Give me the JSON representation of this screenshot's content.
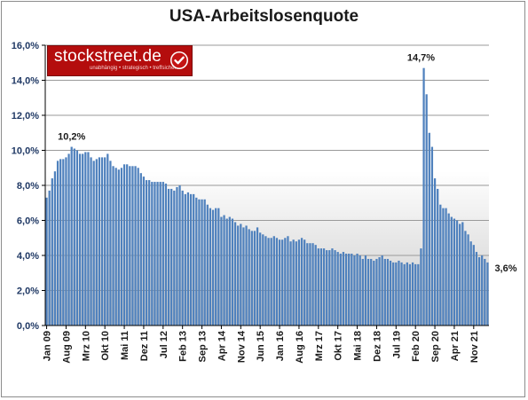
{
  "chart_data": {
    "type": "bar",
    "title": "USA-Arbeitslosenquote",
    "xlabel": "",
    "ylabel": "",
    "ylim": [
      0,
      16
    ],
    "y_tick_labels": [
      "0,0%",
      "2,0%",
      "4,0%",
      "6,0%",
      "8,0%",
      "10,0%",
      "12,0%",
      "14,0%",
      "16,0%"
    ],
    "y_tick_values": [
      0,
      2,
      4,
      6,
      8,
      10,
      12,
      14,
      16
    ],
    "x_tick_labels": [
      {
        "label": "Jan 09",
        "index": 0
      },
      {
        "label": "Aug 09",
        "index": 7
      },
      {
        "label": "Mrz 10",
        "index": 14
      },
      {
        "label": "Okt 10",
        "index": 21
      },
      {
        "label": "Mai 11",
        "index": 28
      },
      {
        "label": "Dez 11",
        "index": 35
      },
      {
        "label": "Jul 12",
        "index": 42
      },
      {
        "label": "Feb 13",
        "index": 49
      },
      {
        "label": "Sep 13",
        "index": 56
      },
      {
        "label": "Apr 14",
        "index": 63
      },
      {
        "label": "Nov 14",
        "index": 70
      },
      {
        "label": "Jun 15",
        "index": 77
      },
      {
        "label": "Jan 16",
        "index": 84
      },
      {
        "label": "Aug 16",
        "index": 91
      },
      {
        "label": "Mrz 17",
        "index": 98
      },
      {
        "label": "Okt 17",
        "index": 105
      },
      {
        "label": "Mai 18",
        "index": 112
      },
      {
        "label": "Dez 18",
        "index": 119
      },
      {
        "label": "Jul 19",
        "index": 126
      },
      {
        "label": "Feb 20",
        "index": 133
      },
      {
        "label": "Sep 20",
        "index": 140
      },
      {
        "label": "Apr 21",
        "index": 147
      },
      {
        "label": "Nov 21",
        "index": 154
      }
    ],
    "annotations": [
      {
        "text": "10,2%",
        "index": 9,
        "value": 10.2
      },
      {
        "text": "14,7%",
        "index": 135,
        "value": 14.7
      },
      {
        "text": "3,6%",
        "index": 159,
        "value": 3.6
      }
    ],
    "series": [
      {
        "color": "#4f81bd",
        "values": [
          7.3,
          7.7,
          8.4,
          8.8,
          9.4,
          9.5,
          9.5,
          9.6,
          9.8,
          10.2,
          10.1,
          10.0,
          9.8,
          9.8,
          9.9,
          9.9,
          9.6,
          9.4,
          9.5,
          9.6,
          9.6,
          9.6,
          9.8,
          9.4,
          9.1,
          9.0,
          8.9,
          9.0,
          9.2,
          9.2,
          9.1,
          9.1,
          9.1,
          9.0,
          8.7,
          8.5,
          8.3,
          8.3,
          8.2,
          8.2,
          8.2,
          8.2,
          8.2,
          8.1,
          7.8,
          7.8,
          7.7,
          7.9,
          8.0,
          7.7,
          7.5,
          7.6,
          7.5,
          7.5,
          7.3,
          7.2,
          7.2,
          7.2,
          6.9,
          6.7,
          6.6,
          6.7,
          6.7,
          6.2,
          6.3,
          6.1,
          6.2,
          6.1,
          5.9,
          5.7,
          5.8,
          5.6,
          5.7,
          5.5,
          5.4,
          5.4,
          5.6,
          5.3,
          5.2,
          5.1,
          5.0,
          5.0,
          5.1,
          5.0,
          4.9,
          4.9,
          5.0,
          5.1,
          4.8,
          4.9,
          4.8,
          4.9,
          5.0,
          4.9,
          4.7,
          4.7,
          4.7,
          4.6,
          4.4,
          4.4,
          4.4,
          4.3,
          4.3,
          4.4,
          4.3,
          4.2,
          4.1,
          4.2,
          4.1,
          4.1,
          4.1,
          4.0,
          4.1,
          4.0,
          3.8,
          4.0,
          3.8,
          3.8,
          3.7,
          3.8,
          3.9,
          4.0,
          3.8,
          3.8,
          3.7,
          3.6,
          3.6,
          3.7,
          3.6,
          3.5,
          3.6,
          3.5,
          3.6,
          3.5,
          3.5,
          4.4,
          14.7,
          13.2,
          11.0,
          10.2,
          8.4,
          7.8,
          6.9,
          6.7,
          6.7,
          6.4,
          6.2,
          6.1,
          6.0,
          5.8,
          5.9,
          5.4,
          5.2,
          4.8,
          4.6,
          4.2,
          3.9,
          4.0,
          3.8,
          3.6
        ]
      }
    ]
  },
  "logo": {
    "text": "stockstreet.de",
    "tagline": "unabhängig • strategisch • treffsicher"
  }
}
